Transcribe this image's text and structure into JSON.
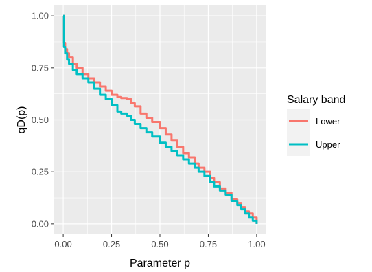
{
  "chart_data": {
    "type": "line",
    "title": "",
    "xlabel": "Parameter p",
    "ylabel": "qD(p)",
    "xlim": [
      -0.05,
      1.05
    ],
    "ylim": [
      -0.05,
      1.05
    ],
    "xticks": [
      0,
      0.25,
      0.5,
      0.75,
      1
    ],
    "xtick_labels": [
      "0.00",
      "0.25",
      "0.50",
      "0.75",
      "1.00"
    ],
    "yticks": [
      0,
      0.25,
      0.5,
      0.75,
      1
    ],
    "ytick_labels": [
      "0.00",
      "0.25",
      "0.50",
      "0.75",
      "1.00"
    ],
    "grid": true,
    "legend": {
      "title": "Salary band",
      "position": "right"
    },
    "series": [
      {
        "name": "Lower",
        "color": "#F8766D",
        "x": [
          0,
          0.004,
          0.01,
          0.02,
          0.03,
          0.05,
          0.07,
          0.1,
          0.13,
          0.16,
          0.19,
          0.22,
          0.25,
          0.28,
          0.3,
          0.33,
          0.35,
          0.37,
          0.4,
          0.43,
          0.46,
          0.5,
          0.53,
          0.56,
          0.59,
          0.62,
          0.65,
          0.68,
          0.7,
          0.73,
          0.76,
          0.78,
          0.81,
          0.84,
          0.87,
          0.9,
          0.92,
          0.94,
          0.96,
          0.98,
          1
        ],
        "y": [
          1,
          0.87,
          0.84,
          0.82,
          0.8,
          0.77,
          0.75,
          0.72,
          0.7,
          0.68,
          0.66,
          0.64,
          0.62,
          0.61,
          0.605,
          0.6,
          0.58,
          0.565,
          0.53,
          0.51,
          0.49,
          0.46,
          0.43,
          0.4,
          0.37,
          0.34,
          0.32,
          0.29,
          0.27,
          0.25,
          0.22,
          0.2,
          0.17,
          0.15,
          0.12,
          0.1,
          0.08,
          0.06,
          0.05,
          0.03,
          0
        ]
      },
      {
        "name": "Upper",
        "color": "#00BFC4",
        "x": [
          0,
          0.004,
          0.01,
          0.02,
          0.03,
          0.05,
          0.07,
          0.1,
          0.13,
          0.16,
          0.19,
          0.22,
          0.25,
          0.28,
          0.3,
          0.33,
          0.35,
          0.37,
          0.4,
          0.43,
          0.46,
          0.5,
          0.53,
          0.56,
          0.59,
          0.62,
          0.65,
          0.68,
          0.7,
          0.73,
          0.76,
          0.78,
          0.81,
          0.84,
          0.87,
          0.9,
          0.92,
          0.94,
          0.96,
          0.98,
          1
        ],
        "y": [
          1,
          0.85,
          0.82,
          0.79,
          0.77,
          0.74,
          0.72,
          0.7,
          0.68,
          0.65,
          0.62,
          0.6,
          0.57,
          0.54,
          0.53,
          0.52,
          0.5,
          0.48,
          0.46,
          0.44,
          0.42,
          0.39,
          0.37,
          0.35,
          0.33,
          0.31,
          0.29,
          0.27,
          0.25,
          0.23,
          0.2,
          0.18,
          0.16,
          0.14,
          0.11,
          0.09,
          0.07,
          0.05,
          0.03,
          0.015,
          0
        ]
      }
    ]
  }
}
